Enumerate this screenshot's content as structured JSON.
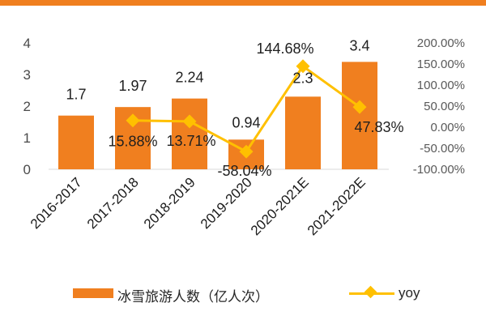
{
  "colors": {
    "bar": "#f07f1f",
    "line": "#ffc000",
    "top_line": "#f07f1f"
  },
  "chart_data": {
    "type": "bar",
    "categories": [
      "2016-2017",
      "2017-2018",
      "2018-2019",
      "2019-2020",
      "2020-2021E",
      "2021-2022E"
    ],
    "series": [
      {
        "name": "冰雪旅游人数（亿人次）",
        "type": "bar",
        "axis": "left",
        "values": [
          1.7,
          1.97,
          2.24,
          0.94,
          2.3,
          3.4
        ],
        "labels": [
          "1.7",
          "1.97",
          "2.24",
          "0.94",
          "2.3",
          "3.4"
        ]
      },
      {
        "name": "yoy",
        "type": "line",
        "axis": "right",
        "values": [
          null,
          15.88,
          13.71,
          -58.04,
          144.68,
          47.83
        ],
        "labels": [
          "",
          "15.88%",
          "13.71%",
          "-58.04%",
          "144.68%",
          "47.83%"
        ]
      }
    ],
    "y_left": {
      "ticks": [
        "0",
        "1",
        "2",
        "3",
        "4"
      ],
      "ylim": [
        0,
        4
      ]
    },
    "y_right": {
      "ticks": [
        "-100.00%",
        "-50.00%",
        "0.00%",
        "50.00%",
        "100.00%",
        "150.00%",
        "200.00%"
      ],
      "ylim": [
        -100,
        200
      ]
    },
    "grid": false,
    "legend_position": "bottom"
  }
}
